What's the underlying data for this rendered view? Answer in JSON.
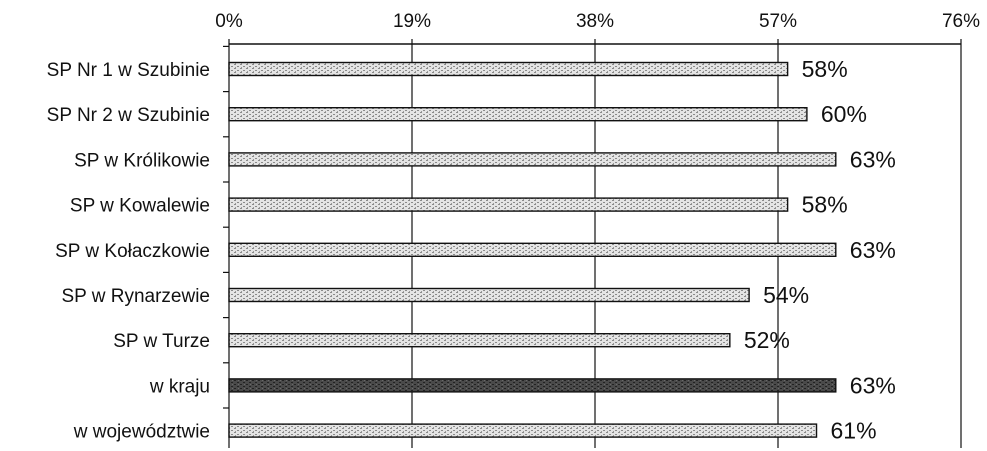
{
  "chart_data": {
    "type": "bar",
    "orientation": "horizontal",
    "title": "",
    "xlabel": "",
    "ylabel": "",
    "xlim": [
      0,
      76
    ],
    "x_ticks": [
      0,
      19,
      38,
      57,
      76
    ],
    "x_tick_labels": [
      "0%",
      "19%",
      "38%",
      "57%",
      "76%"
    ],
    "grid": "vertical",
    "categories": [
      "SP Nr 1 w Szubinie",
      "SP Nr 2 w Szubinie",
      "SP w Królikowie",
      "SP w Kowalewie",
      "SP w Kołaczkowie",
      "SP w Rynarzewie",
      "SP w Turze",
      "w kraju",
      "w województwie"
    ],
    "values": [
      58,
      60,
      63,
      58,
      63,
      54,
      52,
      63,
      61
    ],
    "value_labels": [
      "58%",
      "60%",
      "63%",
      "58%",
      "63%",
      "54%",
      "52%",
      "63%",
      "61%"
    ],
    "bar_styles": [
      "light",
      "light",
      "light",
      "light",
      "light",
      "light",
      "light",
      "dark",
      "light"
    ],
    "colors": {
      "light_fill": "#e4e4e4",
      "light_pattern": "#8a8a8a",
      "dark_fill": "#4a4a4a",
      "dark_pattern": "#222222",
      "outline": "#111111",
      "grid": "#111111"
    }
  }
}
